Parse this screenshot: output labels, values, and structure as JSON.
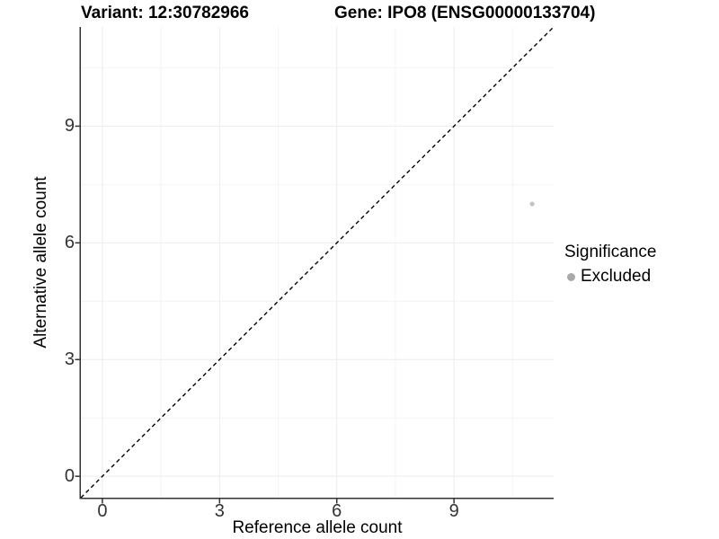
{
  "chart_data": {
    "type": "scatter",
    "titles": {
      "variant": "Variant: 12:30782966",
      "gene": "Gene: IPO8 (ENSG00000133704)"
    },
    "xlabel": "Reference allele count",
    "ylabel": "Alternative allele count",
    "xlim": [
      -0.55,
      11.55
    ],
    "ylim": [
      -0.55,
      11.55
    ],
    "xticks": [
      0,
      3,
      6,
      9
    ],
    "yticks": [
      0,
      3,
      6,
      9
    ],
    "xticks_minor": [
      1.5,
      4.5,
      7.5,
      10.5
    ],
    "yticks_minor": [
      1.5,
      4.5,
      7.5,
      10.5
    ],
    "grid": true,
    "legend_position": "right",
    "series": [
      {
        "name": "Excluded",
        "color": "#c3c3c3",
        "points": [
          {
            "x": 11,
            "y": 7
          }
        ]
      }
    ],
    "identity_line": {
      "slope": 1,
      "intercept": 0,
      "style": "dashed",
      "color": "#000000"
    },
    "legend": {
      "title": "Significance",
      "items": [
        {
          "label": "Excluded",
          "color": "#a9a9a9"
        }
      ]
    },
    "colors": {
      "background": "#ffffff",
      "grid_major": "#ececec",
      "grid_minor": "#f4f4f4",
      "axis_line": "#333333",
      "tick_mark": "#333333",
      "tick_label": "#333333"
    }
  }
}
